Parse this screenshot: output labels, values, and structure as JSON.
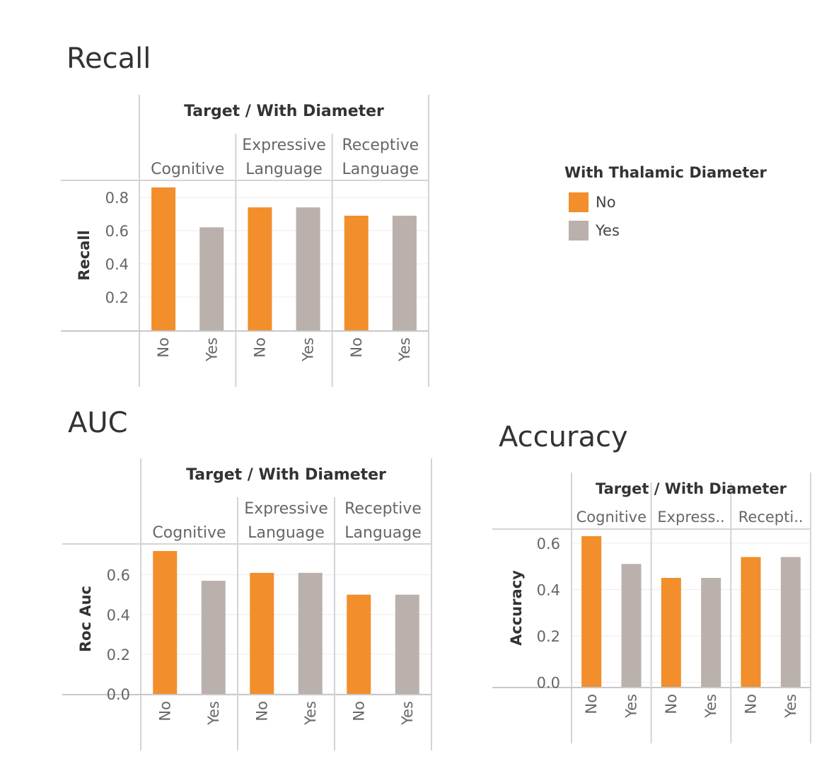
{
  "legend": {
    "title": "With Thalamic Diameter",
    "items": [
      {
        "label": "No",
        "color": "#f28e2b"
      },
      {
        "label": "Yes",
        "color": "#bab0ac"
      }
    ]
  },
  "chart_data": [
    {
      "type": "bar",
      "title": "Recall",
      "header": "Target / With Diameter",
      "ylabel": "Recall",
      "groups": [
        {
          "label": [
            "Cognitive"
          ]
        },
        {
          "label": [
            "Expressive",
            "Language"
          ]
        },
        {
          "label": [
            "Receptive",
            "Language"
          ]
        }
      ],
      "categories": [
        "No",
        "Yes"
      ],
      "values": [
        [
          0.86,
          0.62
        ],
        [
          0.74,
          0.74
        ],
        [
          0.69,
          0.69
        ]
      ],
      "yticks": [
        0.2,
        0.4,
        0.6,
        0.8
      ],
      "ylim": [
        0,
        0.86
      ],
      "colors": {
        "No": "#f28e2b",
        "Yes": "#bab0ac"
      }
    },
    {
      "type": "bar",
      "title": "AUC",
      "header": "Target / With Diameter",
      "ylabel": "Roc Auc",
      "groups": [
        {
          "label": [
            "Cognitive"
          ]
        },
        {
          "label": [
            "Expressive",
            "Language"
          ]
        },
        {
          "label": [
            "Receptive",
            "Language"
          ]
        }
      ],
      "categories": [
        "No",
        "Yes"
      ],
      "values": [
        [
          0.72,
          0.57
        ],
        [
          0.61,
          0.61
        ],
        [
          0.5,
          0.5
        ]
      ],
      "yticks": [
        0.0,
        0.2,
        0.4,
        0.6
      ],
      "ylim": [
        0,
        0.72
      ],
      "colors": {
        "No": "#f28e2b",
        "Yes": "#bab0ac"
      }
    },
    {
      "type": "bar",
      "title": "Accuracy",
      "header": "Target / With Diameter",
      "ylabel": "Accuracy",
      "groups": [
        {
          "label": [
            "Cognitive"
          ]
        },
        {
          "label": [
            "Express.."
          ]
        },
        {
          "label": [
            "Recepti.."
          ]
        }
      ],
      "categories": [
        "No",
        "Yes"
      ],
      "values": [
        [
          0.63,
          0.51
        ],
        [
          0.45,
          0.45
        ],
        [
          0.54,
          0.54
        ]
      ],
      "yticks": [
        0.0,
        0.2,
        0.4,
        0.6
      ],
      "ylim": [
        -0.02,
        0.63
      ],
      "colors": {
        "No": "#f28e2b",
        "Yes": "#bab0ac"
      }
    }
  ]
}
